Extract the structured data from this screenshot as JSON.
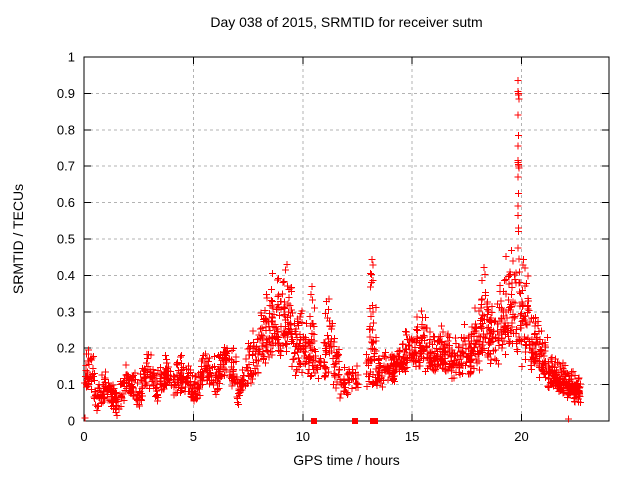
{
  "chart_data": {
    "type": "scatter",
    "title": "Day 038 of 2015, SRMTID for receiver sutm",
    "xlabel": "GPS time / hours",
    "ylabel": "SRMTID / TECUs",
    "xlim": [
      0,
      24
    ],
    "ylim": [
      0,
      1
    ],
    "xticks": {
      "values": [
        0,
        5,
        10,
        15,
        20
      ],
      "labels": [
        "0",
        "5",
        "10",
        "15",
        "20"
      ]
    },
    "yticks": {
      "values": [
        0,
        0.1,
        0.2,
        0.3,
        0.4,
        0.5,
        0.6,
        0.7,
        0.8,
        0.9,
        1
      ],
      "labels": [
        "0",
        "0.1",
        "0.2",
        "0.3",
        "0.4",
        "0.5",
        "0.6",
        "0.7",
        "0.8",
        "0.9",
        "1"
      ]
    },
    "grid": {
      "x": [
        5,
        10,
        15,
        20
      ],
      "y": [
        0.1,
        0.2,
        0.3,
        0.4,
        0.5,
        0.6,
        0.7,
        0.8,
        0.9
      ],
      "color": "#b3b3b3",
      "dash": "3,3"
    },
    "style": {
      "background": "#ffffff",
      "border_color": "#000000",
      "marker_color": "#ff0000",
      "plus_size_px": 7,
      "square_size_px": 6
    },
    "seed": 20150238,
    "segments_encoding": "[start_hour, end_hour, y_min, y_max, point_count] estimated from plot",
    "series": [
      {
        "name": "srmtid",
        "marker": "plus",
        "color": "#ff0000",
        "envelope_segments": [
          [
            0.0,
            0.5,
            0.05,
            0.19,
            40
          ],
          [
            0.5,
            1.0,
            0.03,
            0.15,
            40
          ],
          [
            1.0,
            1.6,
            0.02,
            0.11,
            45
          ],
          [
            1.6,
            2.2,
            0.04,
            0.14,
            45
          ],
          [
            2.2,
            2.8,
            0.05,
            0.16,
            45
          ],
          [
            2.8,
            3.4,
            0.06,
            0.18,
            45
          ],
          [
            3.4,
            4.0,
            0.06,
            0.17,
            45
          ],
          [
            4.0,
            4.6,
            0.07,
            0.19,
            45
          ],
          [
            4.6,
            5.2,
            0.05,
            0.15,
            45
          ],
          [
            5.2,
            5.8,
            0.07,
            0.18,
            45
          ],
          [
            5.8,
            6.4,
            0.08,
            0.2,
            45
          ],
          [
            6.4,
            7.0,
            0.09,
            0.23,
            45
          ],
          [
            7.0,
            7.5,
            0.05,
            0.17,
            35
          ],
          [
            7.5,
            8.0,
            0.08,
            0.27,
            40
          ],
          [
            8.0,
            8.5,
            0.12,
            0.36,
            45
          ],
          [
            8.5,
            9.0,
            0.14,
            0.4,
            50
          ],
          [
            9.0,
            9.5,
            0.14,
            0.43,
            50
          ],
          [
            9.5,
            10.0,
            0.1,
            0.33,
            45
          ],
          [
            10.0,
            10.3,
            0.1,
            0.31,
            25
          ],
          [
            10.3,
            10.55,
            0.08,
            0.37,
            30
          ],
          [
            10.55,
            11.0,
            0.1,
            0.22,
            18
          ],
          [
            11.0,
            11.35,
            0.1,
            0.34,
            35
          ],
          [
            11.35,
            11.7,
            0.07,
            0.29,
            30
          ],
          [
            11.7,
            12.1,
            0.05,
            0.16,
            20
          ],
          [
            12.1,
            12.3,
            0.08,
            0.17,
            12
          ],
          [
            12.3,
            12.55,
            0.08,
            0.16,
            12
          ],
          [
            12.9,
            13.05,
            0.08,
            0.2,
            10
          ],
          [
            13.05,
            13.35,
            0.06,
            0.44,
            40
          ],
          [
            13.35,
            13.7,
            0.08,
            0.2,
            25
          ],
          [
            13.7,
            14.2,
            0.1,
            0.21,
            40
          ],
          [
            14.2,
            14.7,
            0.12,
            0.23,
            45
          ],
          [
            14.7,
            15.2,
            0.12,
            0.26,
            45
          ],
          [
            15.2,
            15.7,
            0.12,
            0.3,
            45
          ],
          [
            15.7,
            16.2,
            0.12,
            0.26,
            45
          ],
          [
            16.2,
            16.7,
            0.11,
            0.28,
            45
          ],
          [
            16.7,
            17.2,
            0.1,
            0.25,
            45
          ],
          [
            17.2,
            17.7,
            0.11,
            0.27,
            45
          ],
          [
            17.7,
            18.1,
            0.12,
            0.33,
            40
          ],
          [
            18.1,
            18.5,
            0.13,
            0.42,
            40
          ],
          [
            18.5,
            19.0,
            0.13,
            0.36,
            45
          ],
          [
            19.0,
            19.4,
            0.15,
            0.45,
            40
          ],
          [
            19.4,
            19.75,
            0.17,
            0.47,
            35
          ],
          [
            19.75,
            20.0,
            0.15,
            0.45,
            20
          ],
          [
            20.0,
            20.4,
            0.12,
            0.45,
            40
          ],
          [
            20.4,
            20.8,
            0.12,
            0.33,
            40
          ],
          [
            20.8,
            21.2,
            0.09,
            0.26,
            40
          ],
          [
            21.2,
            21.6,
            0.08,
            0.19,
            45
          ],
          [
            21.6,
            22.0,
            0.06,
            0.17,
            50
          ],
          [
            22.0,
            22.4,
            0.05,
            0.15,
            55
          ],
          [
            22.4,
            22.7,
            0.04,
            0.13,
            45
          ]
        ],
        "explicit_points": [
          [
            19.84,
            0.935
          ],
          [
            19.85,
            0.905
          ],
          [
            19.86,
            0.9
          ],
          [
            19.87,
            0.895
          ],
          [
            19.88,
            0.885
          ],
          [
            19.84,
            0.84
          ],
          [
            19.86,
            0.785
          ],
          [
            19.85,
            0.755
          ],
          [
            19.83,
            0.715
          ],
          [
            19.85,
            0.71
          ],
          [
            19.86,
            0.705
          ],
          [
            19.87,
            0.7
          ],
          [
            19.88,
            0.695
          ],
          [
            19.84,
            0.67
          ],
          [
            19.86,
            0.625
          ],
          [
            19.85,
            0.59
          ],
          [
            19.84,
            0.565
          ],
          [
            19.86,
            0.53
          ],
          [
            19.87,
            0.52
          ],
          [
            19.85,
            0.475
          ],
          [
            19.89,
            0.445
          ],
          [
            19.91,
            0.41
          ],
          [
            19.93,
            0.38
          ],
          [
            19.95,
            0.35
          ],
          [
            9.28,
            0.43
          ],
          [
            9.2,
            0.415
          ],
          [
            8.62,
            0.405
          ],
          [
            8.88,
            0.392
          ],
          [
            10.42,
            0.37
          ],
          [
            10.38,
            0.348
          ],
          [
            11.2,
            0.335
          ],
          [
            13.17,
            0.443
          ],
          [
            13.2,
            0.428
          ],
          [
            13.14,
            0.402
          ],
          [
            13.22,
            0.386
          ],
          [
            15.42,
            0.302
          ],
          [
            18.28,
            0.422
          ],
          [
            18.34,
            0.402
          ],
          [
            18.2,
            0.386
          ],
          [
            19.3,
            0.452
          ],
          [
            19.55,
            0.468
          ],
          [
            19.62,
            0.44
          ],
          [
            20.08,
            0.443
          ],
          [
            20.16,
            0.42
          ],
          [
            20.3,
            0.398
          ],
          [
            0.05,
            0.008
          ],
          [
            22.15,
            0.005
          ]
        ]
      },
      {
        "name": "zero-markers",
        "marker": "square",
        "color": "#ff0000",
        "points": [
          [
            10.51,
            0
          ],
          [
            12.39,
            0
          ],
          [
            13.2,
            0
          ],
          [
            13.3,
            0
          ]
        ]
      }
    ]
  }
}
